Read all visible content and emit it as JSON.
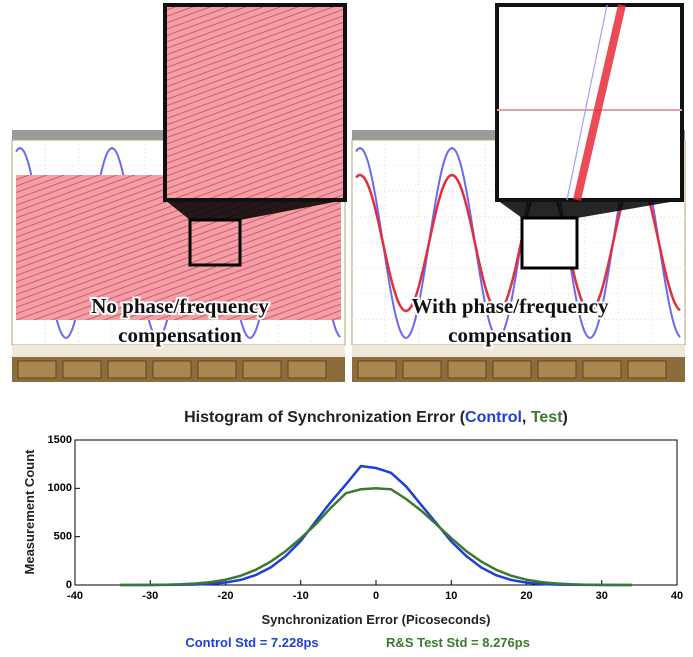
{
  "panels": [
    {
      "label_lines": [
        "No phase/frequency",
        "compensation"
      ]
    },
    {
      "label_lines": [
        "With phase/frequency",
        "compensation"
      ]
    }
  ],
  "chart_data": {
    "type": "line",
    "title_prefix": "Histogram of Synchronization Error (",
    "title_separator": ", ",
    "title_suffix": ")",
    "xlabel": "Synchronization Error (Picoseconds)",
    "ylabel": "Measurement Count",
    "x": [
      -34,
      -32,
      -30,
      -28,
      -26,
      -24,
      -22,
      -20,
      -18,
      -16,
      -14,
      -12,
      -10,
      -8,
      -6,
      -4,
      -2,
      0,
      2,
      4,
      6,
      8,
      10,
      12,
      14,
      16,
      18,
      20,
      22,
      24,
      26,
      28,
      30,
      32,
      34
    ],
    "series": [
      {
        "name": "Control",
        "color": "#1f3fd6",
        "values": [
          0,
          0,
          0,
          1,
          2,
          5,
          11,
          26,
          53,
          102,
          181,
          299,
          456,
          660,
          860,
          1040,
          1230,
          1210,
          1160,
          1020,
          830,
          640,
          450,
          300,
          180,
          100,
          52,
          25,
          10,
          4,
          2,
          1,
          0,
          0,
          0
        ]
      },
      {
        "name": "Test",
        "color": "#3a7a2e",
        "values": [
          0,
          0,
          1,
          3,
          7,
          15,
          30,
          55,
          95,
          156,
          241,
          351,
          484,
          629,
          800,
          950,
          990,
          1000,
          990,
          890,
          770,
          629,
          484,
          351,
          241,
          156,
          95,
          55,
          30,
          15,
          7,
          3,
          1,
          0,
          0
        ]
      }
    ],
    "xlim": [
      -40,
      40
    ],
    "xticks": [
      -40,
      -30,
      -20,
      -10,
      0,
      10,
      20,
      30,
      40
    ],
    "ylim": [
      0,
      1500
    ],
    "yticks": [
      0,
      500,
      1000,
      1500
    ],
    "annotations": [
      {
        "text": "Control Std = 7.228ps",
        "color": "#1f3fd6"
      },
      {
        "text": "R&S Test Std = 8.276ps",
        "color": "#3a7a2e"
      }
    ]
  }
}
